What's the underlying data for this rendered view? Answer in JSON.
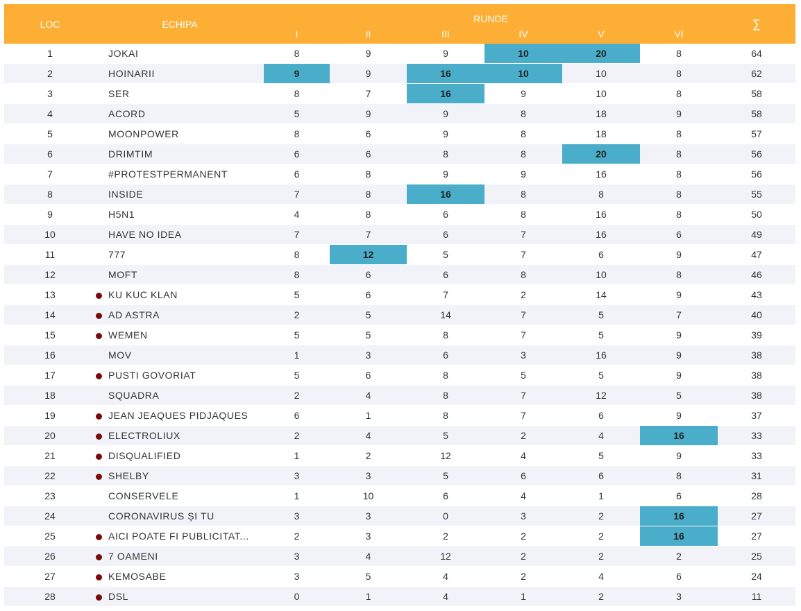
{
  "header": {
    "loc": "LOC",
    "team": "ECHIPA",
    "rounds_group": "RUNDE",
    "rounds": [
      "I",
      "II",
      "III",
      "IV",
      "V",
      "VI"
    ],
    "total": "∑"
  },
  "colors": {
    "header_bg": "#FDAE34",
    "highlight": "#4AADC9",
    "row_alt": "#F1F3F8",
    "marker_dot": "#7A0A0A"
  },
  "rows": [
    {
      "loc": "1",
      "team": "JOKAI",
      "dot": false,
      "scores": [
        "8",
        "9",
        "9",
        "10",
        "20",
        "8"
      ],
      "highlight": [
        false,
        false,
        false,
        true,
        true,
        false
      ],
      "total": "64"
    },
    {
      "loc": "2",
      "team": "HOINARII",
      "dot": false,
      "scores": [
        "9",
        "9",
        "16",
        "10",
        "10",
        "8"
      ],
      "highlight": [
        true,
        false,
        true,
        true,
        false,
        false
      ],
      "total": "62"
    },
    {
      "loc": "3",
      "team": "SER",
      "dot": false,
      "scores": [
        "8",
        "7",
        "16",
        "9",
        "10",
        "8"
      ],
      "highlight": [
        false,
        false,
        true,
        false,
        false,
        false
      ],
      "total": "58"
    },
    {
      "loc": "4",
      "team": "ACORD",
      "dot": false,
      "scores": [
        "5",
        "9",
        "9",
        "8",
        "18",
        "9"
      ],
      "highlight": [
        false,
        false,
        false,
        false,
        false,
        false
      ],
      "total": "58"
    },
    {
      "loc": "5",
      "team": "MOONPOWER",
      "dot": false,
      "scores": [
        "8",
        "6",
        "9",
        "8",
        "18",
        "8"
      ],
      "highlight": [
        false,
        false,
        false,
        false,
        false,
        false
      ],
      "total": "57"
    },
    {
      "loc": "6",
      "team": "DRIMTIM",
      "dot": false,
      "scores": [
        "6",
        "6",
        "8",
        "8",
        "20",
        "8"
      ],
      "highlight": [
        false,
        false,
        false,
        false,
        true,
        false
      ],
      "total": "56"
    },
    {
      "loc": "7",
      "team": "#PROTESTPERMANENT",
      "dot": false,
      "scores": [
        "6",
        "8",
        "9",
        "9",
        "16",
        "8"
      ],
      "highlight": [
        false,
        false,
        false,
        false,
        false,
        false
      ],
      "total": "56"
    },
    {
      "loc": "8",
      "team": "INSIDE",
      "dot": false,
      "scores": [
        "7",
        "8",
        "16",
        "8",
        "8",
        "8"
      ],
      "highlight": [
        false,
        false,
        true,
        false,
        false,
        false
      ],
      "total": "55"
    },
    {
      "loc": "9",
      "team": "H5N1",
      "dot": false,
      "scores": [
        "4",
        "8",
        "6",
        "8",
        "16",
        "8"
      ],
      "highlight": [
        false,
        false,
        false,
        false,
        false,
        false
      ],
      "total": "50"
    },
    {
      "loc": "10",
      "team": "HAVE NO IDEA",
      "dot": false,
      "scores": [
        "7",
        "7",
        "6",
        "7",
        "16",
        "6"
      ],
      "highlight": [
        false,
        false,
        false,
        false,
        false,
        false
      ],
      "total": "49"
    },
    {
      "loc": "11",
      "team": "777",
      "dot": false,
      "scores": [
        "8",
        "12",
        "5",
        "7",
        "6",
        "9"
      ],
      "highlight": [
        false,
        true,
        false,
        false,
        false,
        false
      ],
      "total": "47"
    },
    {
      "loc": "12",
      "team": "MOFT",
      "dot": false,
      "scores": [
        "8",
        "6",
        "6",
        "8",
        "10",
        "8"
      ],
      "highlight": [
        false,
        false,
        false,
        false,
        false,
        false
      ],
      "total": "46"
    },
    {
      "loc": "13",
      "team": "KU KUC KLAN",
      "dot": true,
      "scores": [
        "5",
        "6",
        "7",
        "2",
        "14",
        "9"
      ],
      "highlight": [
        false,
        false,
        false,
        false,
        false,
        false
      ],
      "total": "43"
    },
    {
      "loc": "14",
      "team": "AD ASTRA",
      "dot": true,
      "scores": [
        "2",
        "5",
        "14",
        "7",
        "5",
        "7"
      ],
      "highlight": [
        false,
        false,
        false,
        false,
        false,
        false
      ],
      "total": "40"
    },
    {
      "loc": "15",
      "team": "WEMEN",
      "dot": true,
      "scores": [
        "5",
        "5",
        "8",
        "7",
        "5",
        "9"
      ],
      "highlight": [
        false,
        false,
        false,
        false,
        false,
        false
      ],
      "total": "39"
    },
    {
      "loc": "16",
      "team": "MOV",
      "dot": false,
      "scores": [
        "1",
        "3",
        "6",
        "3",
        "16",
        "9"
      ],
      "highlight": [
        false,
        false,
        false,
        false,
        false,
        false
      ],
      "total": "38"
    },
    {
      "loc": "17",
      "team": "PUSTI GOVORIAT",
      "dot": true,
      "scores": [
        "5",
        "6",
        "8",
        "5",
        "5",
        "9"
      ],
      "highlight": [
        false,
        false,
        false,
        false,
        false,
        false
      ],
      "total": "38"
    },
    {
      "loc": "18",
      "team": "SQUADRA",
      "dot": false,
      "scores": [
        "2",
        "4",
        "8",
        "7",
        "12",
        "5"
      ],
      "highlight": [
        false,
        false,
        false,
        false,
        false,
        false
      ],
      "total": "38"
    },
    {
      "loc": "19",
      "team": "JEAN JEAQUES PIDJAQUES",
      "dot": true,
      "scores": [
        "6",
        "1",
        "8",
        "7",
        "6",
        "9"
      ],
      "highlight": [
        false,
        false,
        false,
        false,
        false,
        false
      ],
      "total": "37"
    },
    {
      "loc": "20",
      "team": "ELECTROLIUX",
      "dot": true,
      "scores": [
        "2",
        "4",
        "5",
        "2",
        "4",
        "16"
      ],
      "highlight": [
        false,
        false,
        false,
        false,
        false,
        true
      ],
      "total": "33"
    },
    {
      "loc": "21",
      "team": "DISQUALIFIED",
      "dot": true,
      "scores": [
        "1",
        "2",
        "12",
        "4",
        "5",
        "9"
      ],
      "highlight": [
        false,
        false,
        false,
        false,
        false,
        false
      ],
      "total": "33"
    },
    {
      "loc": "22",
      "team": "SHELBY",
      "dot": true,
      "scores": [
        "3",
        "3",
        "5",
        "6",
        "6",
        "8"
      ],
      "highlight": [
        false,
        false,
        false,
        false,
        false,
        false
      ],
      "total": "31"
    },
    {
      "loc": "23",
      "team": "CONSERVELE",
      "dot": false,
      "scores": [
        "1",
        "10",
        "6",
        "4",
        "1",
        "6"
      ],
      "highlight": [
        false,
        false,
        false,
        false,
        false,
        false
      ],
      "total": "28"
    },
    {
      "loc": "24",
      "team": "CORONAVIRUS ȘI TU",
      "dot": false,
      "scores": [
        "3",
        "3",
        "0",
        "3",
        "2",
        "16"
      ],
      "highlight": [
        false,
        false,
        false,
        false,
        false,
        true
      ],
      "total": "27"
    },
    {
      "loc": "25",
      "team": "AICI POATE FI PUBLICITAT...",
      "dot": true,
      "scores": [
        "2",
        "3",
        "2",
        "2",
        "2",
        "16"
      ],
      "highlight": [
        false,
        false,
        false,
        false,
        false,
        true
      ],
      "total": "27"
    },
    {
      "loc": "26",
      "team": "7 OAMENI",
      "dot": true,
      "scores": [
        "3",
        "4",
        "12",
        "2",
        "2",
        "2"
      ],
      "highlight": [
        false,
        false,
        false,
        false,
        false,
        false
      ],
      "total": "25"
    },
    {
      "loc": "27",
      "team": "KEMOSABE",
      "dot": true,
      "scores": [
        "3",
        "5",
        "4",
        "2",
        "4",
        "6"
      ],
      "highlight": [
        false,
        false,
        false,
        false,
        false,
        false
      ],
      "total": "24"
    },
    {
      "loc": "28",
      "team": "DSL",
      "dot": true,
      "scores": [
        "0",
        "1",
        "4",
        "1",
        "2",
        "3"
      ],
      "highlight": [
        false,
        false,
        false,
        false,
        false,
        false
      ],
      "total": "11"
    }
  ]
}
